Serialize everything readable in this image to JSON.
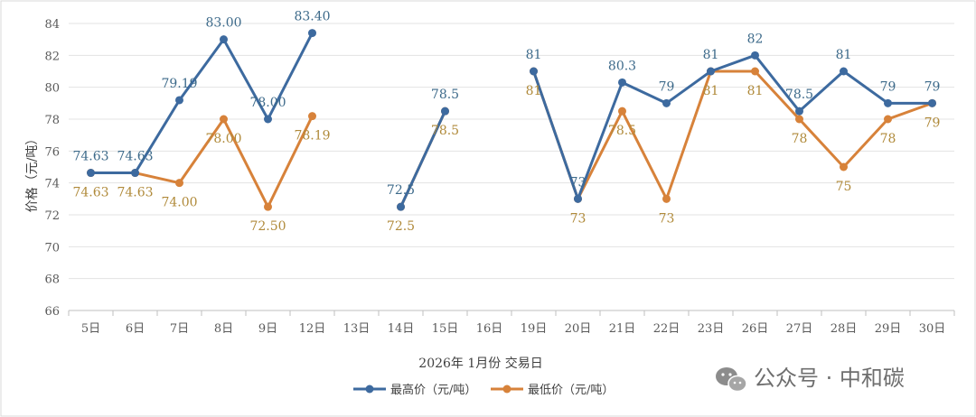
{
  "chart_data": {
    "type": "line",
    "title": "",
    "xlabel": "2026年 1月份 交易日",
    "ylabel": "价格（元/吨）",
    "ylim": [
      66,
      84
    ],
    "yticks": [
      66,
      68,
      70,
      72,
      74,
      76,
      78,
      80,
      82,
      84
    ],
    "grid": true,
    "legend_position": "bottom-center",
    "categories": [
      "5日",
      "6日",
      "7日",
      "8日",
      "9日",
      "12日",
      "13日",
      "14日",
      "15日",
      "16日",
      "19日",
      "20日",
      "21日",
      "22日",
      "23日",
      "26日",
      "27日",
      "28日",
      "29日",
      "30日"
    ],
    "series": [
      {
        "name": "最高价（元/吨）",
        "color": "#3d6a9f",
        "values": [
          74.63,
          74.63,
          79.19,
          83.0,
          78.0,
          83.4,
          null,
          72.5,
          78.5,
          null,
          81,
          73,
          80.3,
          79,
          81,
          82,
          78.5,
          81,
          79,
          79
        ],
        "labels": [
          "74.63",
          "74.63",
          "79.19",
          "83.00",
          "78.00",
          "83.40",
          "",
          "72.5",
          "78.5",
          "",
          "81",
          "73",
          "80.3",
          "79",
          "81",
          "82",
          "78.5",
          "81",
          "79",
          "79"
        ]
      },
      {
        "name": "最低价（元/吨）",
        "color": "#d7823a",
        "values": [
          74.63,
          74.63,
          74.0,
          78.0,
          72.5,
          78.19,
          null,
          72.5,
          78.5,
          null,
          81,
          73,
          78.5,
          73,
          81,
          81,
          78,
          75,
          78,
          79
        ],
        "labels": [
          "74.63",
          "74.63",
          "74.00",
          "78.00",
          "72.50",
          "78.19",
          "",
          "72.5",
          "78.5",
          "",
          "81",
          "73",
          "78.5",
          "73",
          "81",
          "81",
          "78",
          "75",
          "78",
          "79"
        ]
      }
    ]
  },
  "watermark": {
    "icon": "wechat-icon",
    "text": "公众号 · 中和碳"
  }
}
